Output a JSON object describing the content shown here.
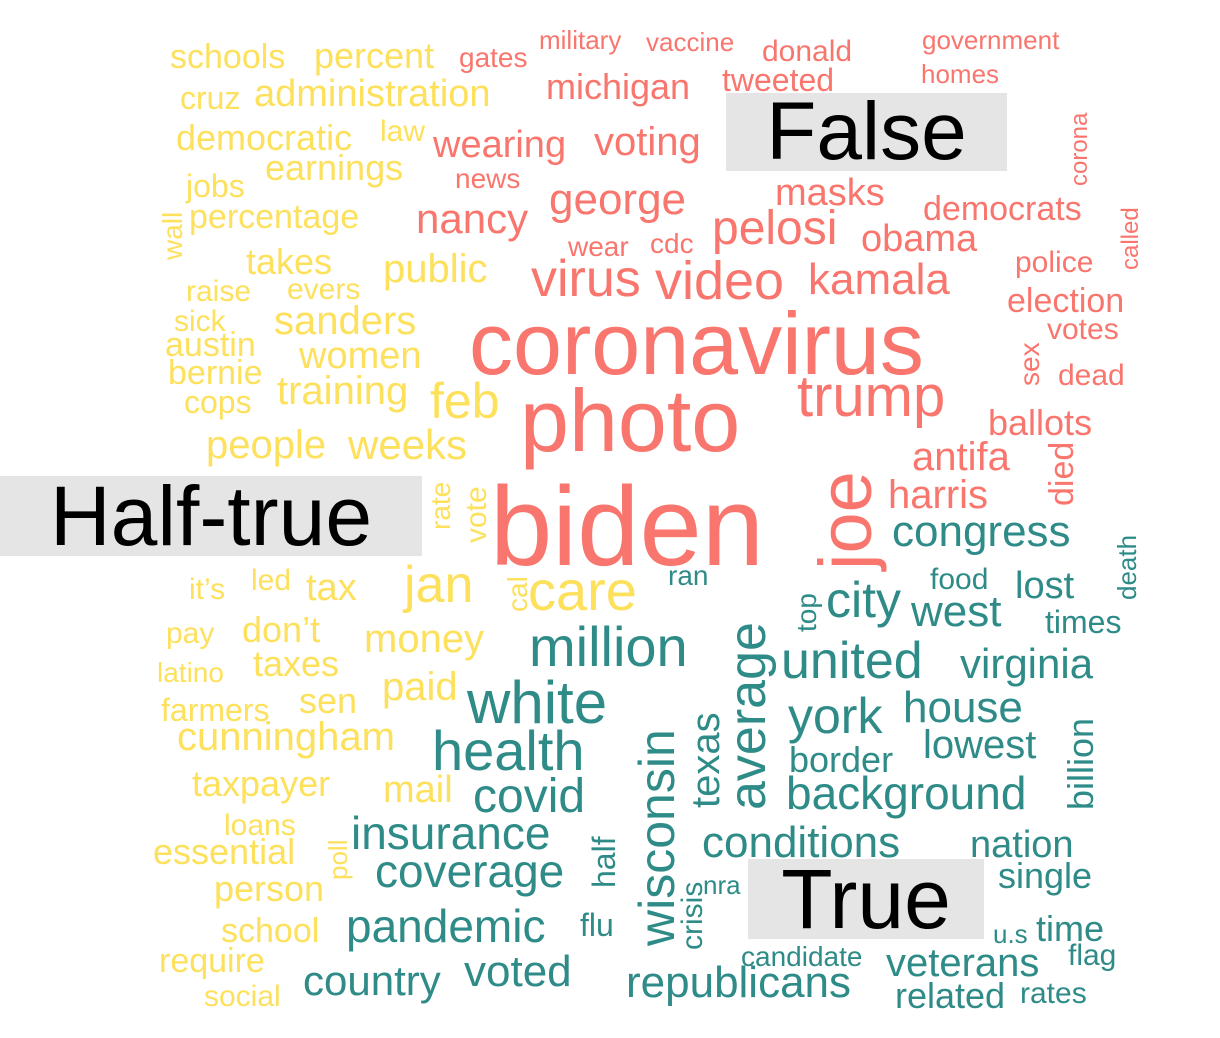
{
  "labels": {
    "false": "False",
    "half_true": "Half-true",
    "true": "True"
  },
  "colors": {
    "false": "#f8766d",
    "half_true": "#fde05c",
    "true": "#2e8b87",
    "label_background": "#e5e5e5"
  },
  "words": {
    "false": [
      "military",
      "vaccine",
      "donald",
      "government",
      "homes",
      "gates",
      "michigan",
      "tweeted",
      "corona",
      "wearing",
      "voting",
      "news",
      "masks",
      "democrats",
      "called",
      "george",
      "nancy",
      "pelosi",
      "wear",
      "cdc",
      "obama",
      "virus",
      "video",
      "kamala",
      "police",
      "election",
      "votes",
      "sex",
      "dead",
      "coronavirus",
      "photo",
      "trump",
      "ballots",
      "antifa",
      "died",
      "harris",
      "biden",
      "joe"
    ],
    "half_true": [
      "schools",
      "percent",
      "cruz",
      "administration",
      "law",
      "democratic",
      "earnings",
      "jobs",
      "wall",
      "percentage",
      "takes",
      "public",
      "raise",
      "evers",
      "sick",
      "sanders",
      "austin",
      "women",
      "bernie",
      "training",
      "cops",
      "feb",
      "people",
      "weeks",
      "rate",
      "vote",
      "it’s",
      "led",
      "tax",
      "jan",
      "cal",
      "care",
      "pay",
      "don’t",
      "money",
      "latino",
      "taxes",
      "paid",
      "farmers",
      "sen",
      "cunningham",
      "taxpayer",
      "mail",
      "loans",
      "poll",
      "essential",
      "person",
      "school",
      "require",
      "social"
    ],
    "true": [
      "congress",
      "death",
      "ran",
      "food",
      "lost",
      "top",
      "city",
      "west",
      "times",
      "million",
      "average",
      "united",
      "virginia",
      "white",
      "wisconsin",
      "texas",
      "york",
      "house",
      "health",
      "billion",
      "border",
      "lowest",
      "covid",
      "background",
      "insurance",
      "half",
      "conditions",
      "nation",
      "coverage",
      "crisis",
      "nra",
      "single",
      "pandemic",
      "flu",
      "u.s",
      "time",
      "candidate",
      "flag",
      "country",
      "voted",
      "veterans",
      "republicans",
      "related",
      "rates"
    ]
  }
}
